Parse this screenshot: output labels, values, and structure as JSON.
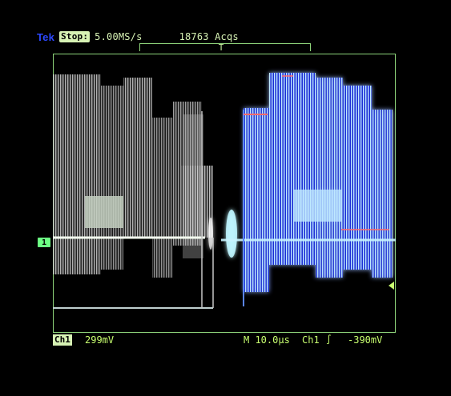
{
  "header": {
    "brand": "Tek",
    "state": "Stop:",
    "sample_rate": "5.00MS/s",
    "acquisitions": "18763 Acqs",
    "trigger_marker": "T"
  },
  "markers": {
    "channel": "1",
    "trigger_arrow": "◀"
  },
  "footer": {
    "channel_label": "Ch1",
    "volts_per_div": "299mV",
    "main_scale": "M 10.0µs",
    "trigger_source": "Ch1",
    "trigger_slope": "∫",
    "trigger_level": "-390mV"
  },
  "colors": {
    "background": "#000000",
    "graticule": "#8ed47a",
    "trace_white": "#e6e6e6",
    "trace_blue": "#4f8cff",
    "trace_cyan": "#aef0ff",
    "label": "#c8ff70"
  }
}
